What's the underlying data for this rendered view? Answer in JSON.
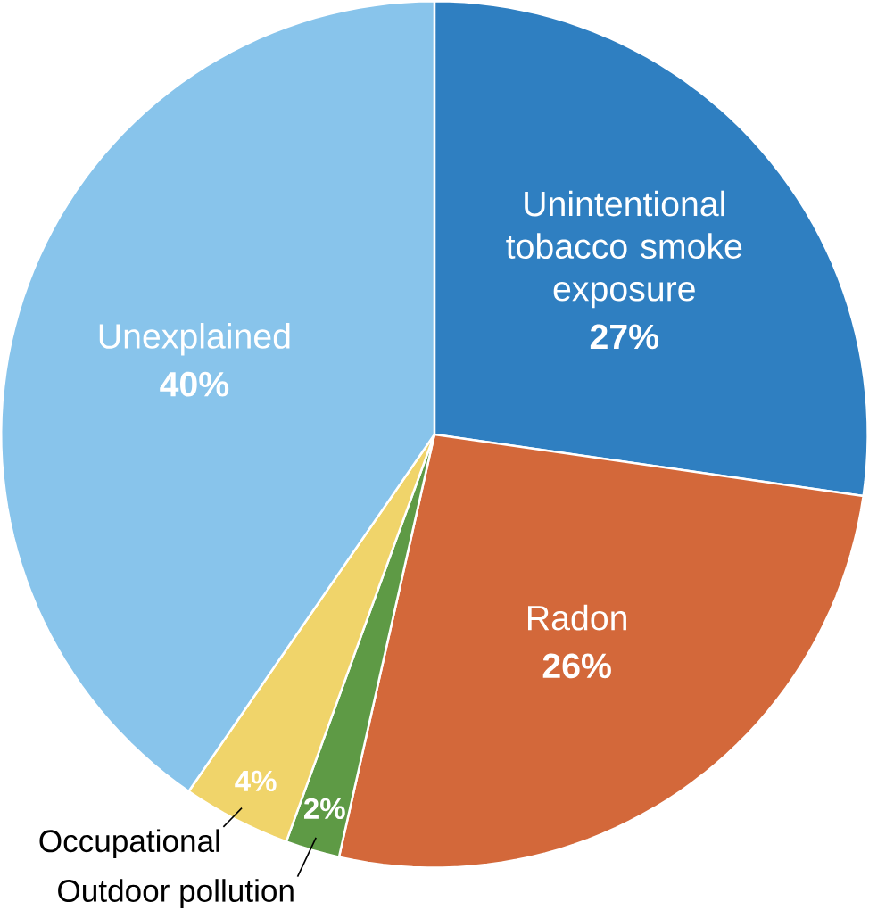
{
  "chart_data": {
    "type": "pie",
    "categories": [
      "Unintentional tobacco smoke exposure",
      "Radon",
      "Outdoor pollution",
      "Occupational",
      "Unexplained"
    ],
    "values": [
      27,
      26,
      2,
      4,
      40
    ],
    "colors": [
      "#2f7fc1",
      "#d3683a",
      "#5e9a45",
      "#f0d46a",
      "#88c4eb"
    ],
    "value_labels": [
      "27%",
      "26%",
      "2%",
      "4%",
      "40%"
    ]
  }
}
